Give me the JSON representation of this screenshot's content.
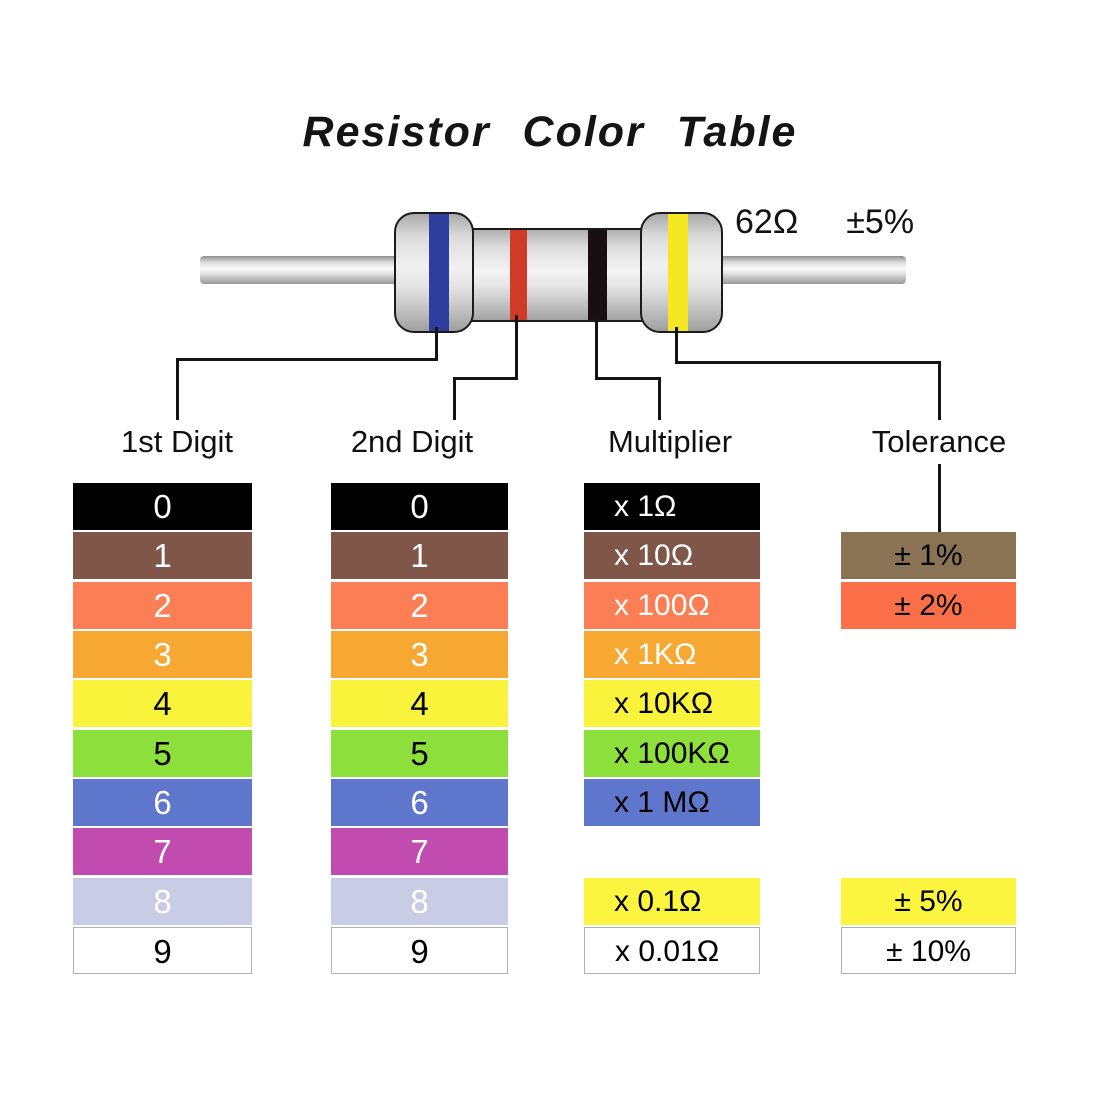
{
  "title": "Resistor Color Table",
  "resistor": {
    "value_label": "62Ω",
    "tolerance_label": "±5%",
    "bands": [
      {
        "name": "blue-band",
        "color": "#2E3E9E"
      },
      {
        "name": "red-band",
        "color": "#D03A28"
      },
      {
        "name": "black-band",
        "color": "#161012"
      },
      {
        "name": "yellow-band",
        "color": "#F5E822"
      }
    ]
  },
  "headers": [
    "1st Digit",
    "2nd Digit",
    "Multiplier",
    "Tolerance"
  ],
  "columns": [
    {
      "host": "col-digit1",
      "row_name": "first-digit-row",
      "rows": [
        {
          "row": 0,
          "label": "0",
          "bg": "#000000",
          "fg": "#FFFFFF"
        },
        {
          "row": 1,
          "label": "1",
          "bg": "#7F5648",
          "fg": "#FFFFFF"
        },
        {
          "row": 2,
          "label": "2",
          "bg": "#FC7E55",
          "fg": "#FFFFFF"
        },
        {
          "row": 3,
          "label": "3",
          "bg": "#F6A832",
          "fg": "#FFFFFF"
        },
        {
          "row": 4,
          "label": "4",
          "bg": "#F9F33C",
          "fg": "#000000"
        },
        {
          "row": 5,
          "label": "5",
          "bg": "#8DDF3B",
          "fg": "#000000"
        },
        {
          "row": 6,
          "label": "6",
          "bg": "#5E76CB",
          "fg": "#FFFFFF"
        },
        {
          "row": 7,
          "label": "7",
          "bg": "#C14BAE",
          "fg": "#FFFFFF"
        },
        {
          "row": 8,
          "label": "8",
          "bg": "#C9CCE5",
          "fg": "#FFFFFF"
        },
        {
          "row": 9,
          "label": "9",
          "bg": "#FFFFFF",
          "fg": "#000000",
          "bordered": true
        }
      ]
    },
    {
      "host": "col-digit2",
      "row_name": "second-digit-row",
      "rows": [
        {
          "row": 0,
          "label": "0",
          "bg": "#000000",
          "fg": "#FFFFFF"
        },
        {
          "row": 1,
          "label": "1",
          "bg": "#7F5648",
          "fg": "#FFFFFF"
        },
        {
          "row": 2,
          "label": "2",
          "bg": "#FC7E55",
          "fg": "#FFFFFF"
        },
        {
          "row": 3,
          "label": "3",
          "bg": "#F6A832",
          "fg": "#FFFFFF"
        },
        {
          "row": 4,
          "label": "4",
          "bg": "#F9F33C",
          "fg": "#000000"
        },
        {
          "row": 5,
          "label": "5",
          "bg": "#8DDF3B",
          "fg": "#000000"
        },
        {
          "row": 6,
          "label": "6",
          "bg": "#5E76CB",
          "fg": "#FFFFFF"
        },
        {
          "row": 7,
          "label": "7",
          "bg": "#C14BAE",
          "fg": "#FFFFFF"
        },
        {
          "row": 8,
          "label": "8",
          "bg": "#C9CCE5",
          "fg": "#FFFFFF"
        },
        {
          "row": 9,
          "label": "9",
          "bg": "#FFFFFF",
          "fg": "#000000",
          "bordered": true
        }
      ]
    },
    {
      "host": "col-multiplier",
      "row_name": "multiplier-row",
      "rows": [
        {
          "row": 0,
          "label": "x 1Ω",
          "bg": "#000000",
          "fg": "#FFFFFF"
        },
        {
          "row": 1,
          "label": "x 10Ω",
          "bg": "#7F5648",
          "fg": "#FFFFFF"
        },
        {
          "row": 2,
          "label": "x 100Ω",
          "bg": "#FC7E55",
          "fg": "#FFFFFF"
        },
        {
          "row": 3,
          "label": "x 1KΩ",
          "bg": "#F6A832",
          "fg": "#FFFFFF"
        },
        {
          "row": 4,
          "label": "x 10KΩ",
          "bg": "#F9F33C",
          "fg": "#000000"
        },
        {
          "row": 5,
          "label": "x 100KΩ",
          "bg": "#8DDF3B",
          "fg": "#000000"
        },
        {
          "row": 6,
          "label": "x 1 MΩ",
          "bg": "#5E76CB",
          "fg": "#000000"
        },
        {
          "row": 8,
          "label": "x 0.1Ω",
          "bg": "#FCF540",
          "fg": "#000000"
        },
        {
          "row": 9,
          "label": "x 0.01Ω",
          "bg": "#FFFFFF",
          "fg": "#000000",
          "bordered": true
        }
      ]
    },
    {
      "host": "col-tolerance",
      "row_name": "tolerance-row",
      "rows": [
        {
          "row": 1,
          "label": "± 1%",
          "bg": "#8A7355",
          "fg": "#000000"
        },
        {
          "row": 2,
          "label": "± 2%",
          "bg": "#FB6F48",
          "fg": "#000000"
        },
        {
          "row": 8,
          "label": "± 5%",
          "bg": "#FCF540",
          "fg": "#000000"
        },
        {
          "row": 9,
          "label": "± 10%",
          "bg": "#FFFFFF",
          "fg": "#000000",
          "bordered": true
        }
      ]
    }
  ]
}
